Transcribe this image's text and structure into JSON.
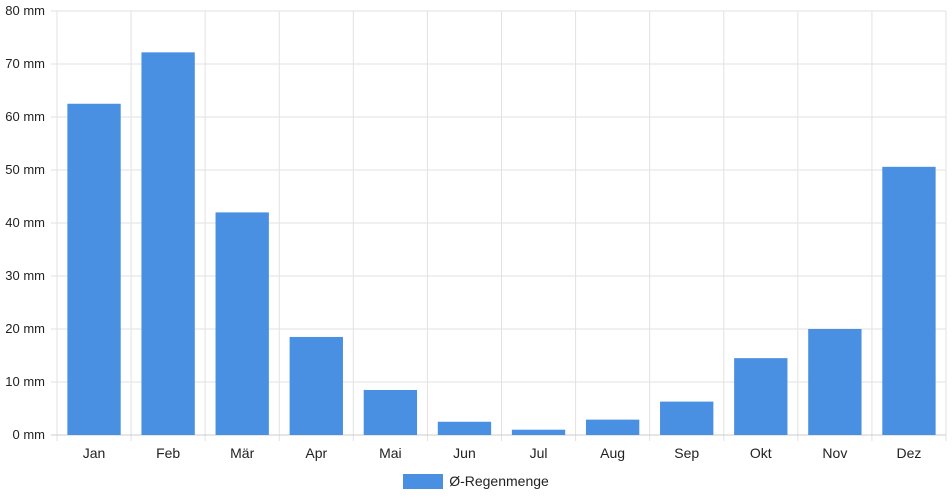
{
  "chart_data": {
    "type": "bar",
    "categories": [
      "Jan",
      "Feb",
      "Mär",
      "Apr",
      "Mai",
      "Jun",
      "Jul",
      "Aug",
      "Sep",
      "Okt",
      "Nov",
      "Dez"
    ],
    "series": [
      {
        "name": "Ø-Regenmenge",
        "values": [
          62.5,
          72.2,
          42.0,
          18.5,
          8.5,
          2.5,
          1.0,
          2.9,
          6.3,
          14.5,
          20.0,
          50.6
        ]
      }
    ],
    "ylim": [
      0,
      80
    ],
    "yticks": [
      0,
      10,
      20,
      30,
      40,
      50,
      60,
      70,
      80
    ],
    "ytick_labels": [
      "0 mm",
      "10 mm",
      "20 mm",
      "30 mm",
      "40 mm",
      "50 mm",
      "60 mm",
      "70 mm",
      "80 mm"
    ],
    "grid": true,
    "legend_position": "bottom",
    "colors": {
      "bar": "#4a90e2",
      "grid": "#e2e2e2",
      "axis": "#cccccc"
    }
  }
}
